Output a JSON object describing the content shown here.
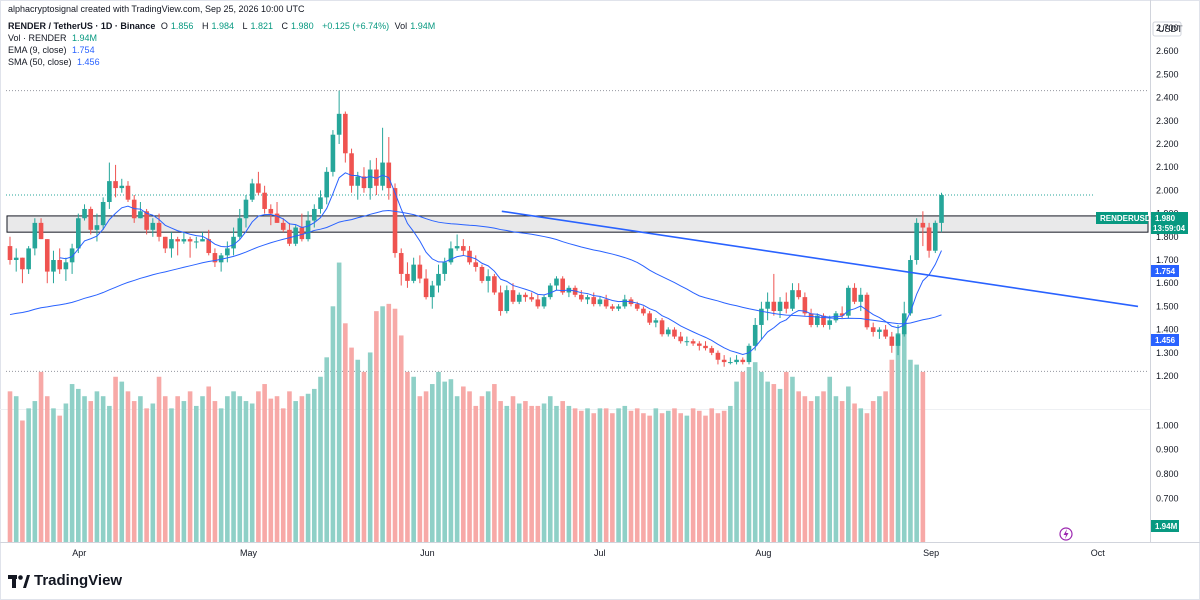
{
  "attribution": "alphacryptosignal created with TradingView.com, Sep 25, 2026 10:00 UTC",
  "symbol": {
    "pair": "RENDER / TetherUS · 1D · Binance",
    "open_label": "O",
    "open": "1.856",
    "high_label": "H",
    "high": "1.984",
    "low_label": "L",
    "low": "1.821",
    "close_label": "C",
    "close": "1.980",
    "change": "+0.125 (+6.74%)",
    "vol_label": "Vol",
    "vol": "1.94M"
  },
  "indicators": [
    {
      "name": "Vol · RENDER",
      "value": "1.94M",
      "color": "#089981"
    },
    {
      "name": "EMA (9, close)",
      "value": "1.754",
      "color": "#2962ff"
    },
    {
      "name": "SMA (50, close)",
      "value": "1.456",
      "color": "#2962ff"
    }
  ],
  "currency": "USDT",
  "price_tag": {
    "symbol": "RENDERUSDT",
    "price": "1.980",
    "countdown": "13:59:04"
  },
  "ema_tag": "1.754",
  "sma_tag": "1.456",
  "volume_tag": "1.94M",
  "logo": "TradingView",
  "colors": {
    "up": "#26a69a",
    "down": "#ef5350",
    "vol_up": "#8fd0c7",
    "vol_down": "#f7a9a7",
    "line": "#2962ff",
    "grid": "#d1d4dc"
  },
  "chart_data": {
    "type": "candlestick",
    "xlabels": [
      "Apr",
      "May",
      "Jun",
      "Jul",
      "Aug",
      "Sep",
      "Oct"
    ],
    "price_ticks": [
      "2.700",
      "2.600",
      "2.500",
      "2.400",
      "2.300",
      "2.200",
      "2.100",
      "2.000",
      "1.900",
      "1.800",
      "1.700",
      "1.600",
      "1.500",
      "1.400",
      "1.300",
      "1.200"
    ],
    "volume_ticks": [
      "1.000",
      "0.900",
      "0.800",
      "0.700"
    ],
    "price_range": [
      1.2,
      2.7
    ],
    "volume_range": [
      0,
      1.0
    ],
    "support_zone": [
      1.82,
      1.89
    ],
    "dotted_levels": [
      2.43,
      1.98,
      1.22
    ],
    "trendline": {
      "start_index": 80,
      "start_price": 1.91,
      "end_index": 252,
      "end_price": 1.5
    },
    "ohlc": [
      [
        1.76,
        1.8,
        1.68,
        1.7
      ],
      [
        1.7,
        1.75,
        1.65,
        1.71
      ],
      [
        1.71,
        1.71,
        1.6,
        1.66
      ],
      [
        1.66,
        1.76,
        1.64,
        1.75
      ],
      [
        1.75,
        1.88,
        1.72,
        1.86
      ],
      [
        1.86,
        1.88,
        1.79,
        1.79
      ],
      [
        1.79,
        1.79,
        1.6,
        1.65
      ],
      [
        1.65,
        1.74,
        1.6,
        1.7
      ],
      [
        1.7,
        1.75,
        1.64,
        1.66
      ],
      [
        1.66,
        1.71,
        1.61,
        1.69
      ],
      [
        1.69,
        1.77,
        1.64,
        1.75
      ],
      [
        1.75,
        1.9,
        1.73,
        1.88
      ],
      [
        1.88,
        1.94,
        1.87,
        1.92
      ],
      [
        1.92,
        1.93,
        1.81,
        1.83
      ],
      [
        1.83,
        1.9,
        1.78,
        1.85
      ],
      [
        1.85,
        1.97,
        1.83,
        1.95
      ],
      [
        1.95,
        2.12,
        1.92,
        2.04
      ],
      [
        2.04,
        2.11,
        1.97,
        2.01
      ],
      [
        2.01,
        2.05,
        1.99,
        2.02
      ],
      [
        2.02,
        2.04,
        1.95,
        1.96
      ],
      [
        1.96,
        1.98,
        1.86,
        1.88
      ],
      [
        1.88,
        1.95,
        1.88,
        1.91
      ],
      [
        1.91,
        1.92,
        1.81,
        1.83
      ],
      [
        1.83,
        1.88,
        1.8,
        1.86
      ],
      [
        1.86,
        1.9,
        1.78,
        1.8
      ],
      [
        1.8,
        1.8,
        1.73,
        1.75
      ],
      [
        1.75,
        1.82,
        1.71,
        1.79
      ],
      [
        1.79,
        1.8,
        1.72,
        1.78
      ],
      [
        1.78,
        1.82,
        1.77,
        1.79
      ],
      [
        1.79,
        1.8,
        1.71,
        1.78
      ],
      [
        1.78,
        1.8,
        1.75,
        1.78
      ],
      [
        1.78,
        1.82,
        1.78,
        1.79
      ],
      [
        1.79,
        1.83,
        1.72,
        1.73
      ],
      [
        1.73,
        1.75,
        1.67,
        1.69
      ],
      [
        1.69,
        1.73,
        1.65,
        1.72
      ],
      [
        1.72,
        1.78,
        1.69,
        1.75
      ],
      [
        1.75,
        1.84,
        1.72,
        1.8
      ],
      [
        1.8,
        1.92,
        1.79,
        1.88
      ],
      [
        1.88,
        1.98,
        1.84,
        1.96
      ],
      [
        1.96,
        2.05,
        1.95,
        2.03
      ],
      [
        2.03,
        2.08,
        1.98,
        1.99
      ],
      [
        1.99,
        2.02,
        1.9,
        1.92
      ],
      [
        1.92,
        1.94,
        1.85,
        1.9
      ],
      [
        1.9,
        1.95,
        1.86,
        1.86
      ],
      [
        1.86,
        1.88,
        1.82,
        1.83
      ],
      [
        1.83,
        1.86,
        1.76,
        1.77
      ],
      [
        1.77,
        1.85,
        1.76,
        1.84
      ],
      [
        1.84,
        1.9,
        1.78,
        1.79
      ],
      [
        1.79,
        1.91,
        1.78,
        1.87
      ],
      [
        1.87,
        1.94,
        1.84,
        1.92
      ],
      [
        1.92,
        2.0,
        1.9,
        1.97
      ],
      [
        1.97,
        2.1,
        1.94,
        2.08
      ],
      [
        2.08,
        2.26,
        2.06,
        2.24
      ],
      [
        2.24,
        2.43,
        2.2,
        2.33
      ],
      [
        2.33,
        2.34,
        2.12,
        2.16
      ],
      [
        2.16,
        2.18,
        1.99,
        2.02
      ],
      [
        2.02,
        2.08,
        1.96,
        2.06
      ],
      [
        2.06,
        2.1,
        1.99,
        2.01
      ],
      [
        2.01,
        2.13,
        1.96,
        2.09
      ],
      [
        2.09,
        2.14,
        1.98,
        2.02
      ],
      [
        2.02,
        2.27,
        2.0,
        2.12
      ],
      [
        2.12,
        2.23,
        1.96,
        2.01
      ],
      [
        2.01,
        2.03,
        1.71,
        1.73
      ],
      [
        1.73,
        1.75,
        1.59,
        1.64
      ],
      [
        1.64,
        1.69,
        1.58,
        1.61
      ],
      [
        1.61,
        1.71,
        1.6,
        1.68
      ],
      [
        1.68,
        1.72,
        1.6,
        1.62
      ],
      [
        1.62,
        1.66,
        1.53,
        1.54
      ],
      [
        1.54,
        1.61,
        1.49,
        1.59
      ],
      [
        1.59,
        1.68,
        1.56,
        1.64
      ],
      [
        1.64,
        1.71,
        1.61,
        1.69
      ],
      [
        1.69,
        1.78,
        1.68,
        1.75
      ],
      [
        1.75,
        1.81,
        1.74,
        1.76
      ],
      [
        1.76,
        1.79,
        1.72,
        1.74
      ],
      [
        1.74,
        1.76,
        1.68,
        1.69
      ],
      [
        1.69,
        1.72,
        1.65,
        1.67
      ],
      [
        1.67,
        1.68,
        1.6,
        1.61
      ],
      [
        1.61,
        1.66,
        1.56,
        1.63
      ],
      [
        1.63,
        1.64,
        1.55,
        1.56
      ],
      [
        1.56,
        1.59,
        1.46,
        1.48
      ],
      [
        1.48,
        1.59,
        1.47,
        1.57
      ],
      [
        1.57,
        1.6,
        1.51,
        1.52
      ],
      [
        1.52,
        1.56,
        1.51,
        1.55
      ],
      [
        1.55,
        1.56,
        1.52,
        1.54
      ],
      [
        1.54,
        1.56,
        1.52,
        1.53
      ],
      [
        1.53,
        1.55,
        1.49,
        1.5
      ],
      [
        1.5,
        1.55,
        1.49,
        1.54
      ],
      [
        1.54,
        1.6,
        1.53,
        1.59
      ],
      [
        1.59,
        1.63,
        1.57,
        1.62
      ],
      [
        1.62,
        1.63,
        1.55,
        1.56
      ],
      [
        1.56,
        1.59,
        1.54,
        1.58
      ],
      [
        1.58,
        1.59,
        1.54,
        1.55
      ],
      [
        1.55,
        1.57,
        1.52,
        1.53
      ],
      [
        1.53,
        1.55,
        1.51,
        1.54
      ],
      [
        1.54,
        1.56,
        1.5,
        1.51
      ],
      [
        1.51,
        1.54,
        1.5,
        1.53
      ],
      [
        1.53,
        1.55,
        1.49,
        1.5
      ],
      [
        1.5,
        1.51,
        1.48,
        1.49
      ],
      [
        1.49,
        1.51,
        1.48,
        1.5
      ],
      [
        1.5,
        1.55,
        1.49,
        1.53
      ],
      [
        1.53,
        1.54,
        1.5,
        1.51
      ],
      [
        1.51,
        1.52,
        1.48,
        1.49
      ],
      [
        1.49,
        1.5,
        1.46,
        1.47
      ],
      [
        1.47,
        1.48,
        1.42,
        1.43
      ],
      [
        1.43,
        1.45,
        1.41,
        1.44
      ],
      [
        1.44,
        1.45,
        1.37,
        1.38
      ],
      [
        1.38,
        1.41,
        1.37,
        1.4
      ],
      [
        1.4,
        1.41,
        1.36,
        1.37
      ],
      [
        1.37,
        1.39,
        1.34,
        1.35
      ],
      [
        1.35,
        1.37,
        1.33,
        1.35
      ],
      [
        1.35,
        1.36,
        1.33,
        1.34
      ],
      [
        1.34,
        1.35,
        1.31,
        1.33
      ],
      [
        1.33,
        1.35,
        1.31,
        1.32
      ],
      [
        1.32,
        1.33,
        1.29,
        1.3
      ],
      [
        1.3,
        1.31,
        1.25,
        1.27
      ],
      [
        1.27,
        1.29,
        1.24,
        1.26
      ],
      [
        1.26,
        1.28,
        1.25,
        1.26
      ],
      [
        1.26,
        1.29,
        1.25,
        1.27
      ],
      [
        1.27,
        1.28,
        1.25,
        1.26
      ],
      [
        1.26,
        1.34,
        1.25,
        1.33
      ],
      [
        1.33,
        1.45,
        1.31,
        1.42
      ],
      [
        1.42,
        1.52,
        1.36,
        1.49
      ],
      [
        1.49,
        1.56,
        1.44,
        1.52
      ],
      [
        1.52,
        1.64,
        1.46,
        1.48
      ],
      [
        1.48,
        1.54,
        1.45,
        1.52
      ],
      [
        1.52,
        1.56,
        1.47,
        1.49
      ],
      [
        1.49,
        1.6,
        1.48,
        1.57
      ],
      [
        1.57,
        1.6,
        1.53,
        1.54
      ],
      [
        1.54,
        1.56,
        1.46,
        1.47
      ],
      [
        1.47,
        1.49,
        1.41,
        1.42
      ],
      [
        1.42,
        1.47,
        1.41,
        1.46
      ],
      [
        1.46,
        1.47,
        1.41,
        1.42
      ],
      [
        1.42,
        1.46,
        1.4,
        1.44
      ],
      [
        1.44,
        1.48,
        1.43,
        1.47
      ],
      [
        1.47,
        1.5,
        1.45,
        1.46
      ],
      [
        1.46,
        1.59,
        1.45,
        1.58
      ],
      [
        1.58,
        1.6,
        1.51,
        1.52
      ],
      [
        1.52,
        1.58,
        1.48,
        1.55
      ],
      [
        1.55,
        1.56,
        1.4,
        1.41
      ],
      [
        1.41,
        1.43,
        1.37,
        1.39
      ],
      [
        1.39,
        1.41,
        1.36,
        1.4
      ],
      [
        1.4,
        1.42,
        1.36,
        1.37
      ],
      [
        1.37,
        1.39,
        1.3,
        1.33
      ],
      [
        1.33,
        1.42,
        1.29,
        1.38
      ],
      [
        1.38,
        1.52,
        1.37,
        1.47
      ],
      [
        1.47,
        1.72,
        1.46,
        1.7
      ],
      [
        1.7,
        1.88,
        1.68,
        1.86
      ],
      [
        1.86,
        1.91,
        1.76,
        1.84
      ],
      [
        1.84,
        1.86,
        1.71,
        1.74
      ],
      [
        1.74,
        1.87,
        1.73,
        1.86
      ],
      [
        1.86,
        1.99,
        1.82,
        1.98
      ]
    ],
    "volume": [
      0.62,
      0.6,
      0.5,
      0.55,
      0.58,
      0.7,
      0.6,
      0.55,
      0.52,
      0.57,
      0.65,
      0.63,
      0.6,
      0.58,
      0.62,
      0.6,
      0.56,
      0.68,
      0.66,
      0.62,
      0.58,
      0.6,
      0.55,
      0.57,
      0.68,
      0.6,
      0.55,
      0.6,
      0.58,
      0.62,
      0.56,
      0.6,
      0.64,
      0.58,
      0.55,
      0.6,
      0.62,
      0.6,
      0.58,
      0.57,
      0.62,
      0.65,
      0.59,
      0.6,
      0.55,
      0.62,
      0.58,
      0.6,
      0.61,
      0.63,
      0.68,
      0.76,
      0.97,
      1.15,
      0.9,
      0.8,
      0.75,
      0.7,
      0.78,
      0.95,
      0.97,
      0.98,
      0.96,
      0.85,
      0.7,
      0.68,
      0.6,
      0.62,
      0.65,
      0.7,
      0.66,
      0.67,
      0.6,
      0.64,
      0.62,
      0.56,
      0.6,
      0.62,
      0.65,
      0.58,
      0.56,
      0.6,
      0.57,
      0.58,
      0.56,
      0.56,
      0.57,
      0.6,
      0.56,
      0.58,
      0.56,
      0.55,
      0.54,
      0.55,
      0.53,
      0.55,
      0.55,
      0.53,
      0.55,
      0.56,
      0.54,
      0.55,
      0.53,
      0.52,
      0.55,
      0.53,
      0.54,
      0.55,
      0.53,
      0.52,
      0.55,
      0.54,
      0.52,
      0.55,
      0.53,
      0.54,
      0.56,
      0.66,
      0.7,
      0.72,
      0.74,
      0.7,
      0.66,
      0.65,
      0.63,
      0.7,
      0.68,
      0.62,
      0.6,
      0.58,
      0.6,
      0.62,
      0.68,
      0.6,
      0.58,
      0.64,
      0.57,
      0.55,
      0.53,
      0.58,
      0.6,
      0.62,
      0.75,
      0.86,
      0.87,
      0.75,
      0.73,
      0.7
    ]
  }
}
